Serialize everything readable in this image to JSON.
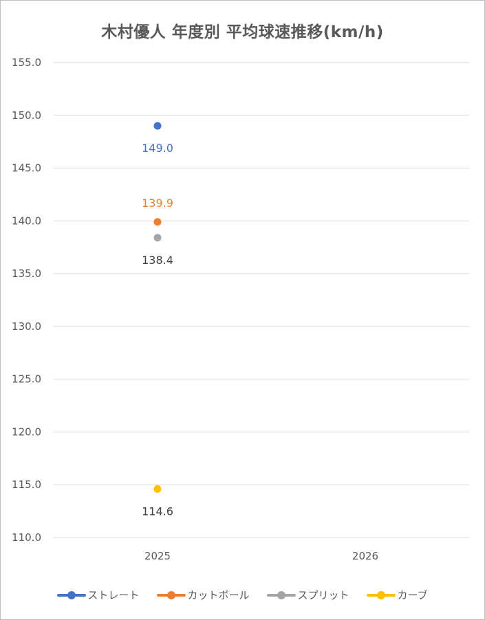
{
  "chart_data": {
    "type": "scatter",
    "title": "木村優人 年度別 平均球速推移(km/h)",
    "categories": [
      "2025",
      "2026"
    ],
    "ylim": [
      110,
      155
    ],
    "yticks": [
      "110.0",
      "115.0",
      "120.0",
      "125.0",
      "130.0",
      "135.0",
      "140.0",
      "145.0",
      "150.0",
      "155.0"
    ],
    "grid": true,
    "legend_position": "bottom",
    "series": [
      {
        "name": "ストレート",
        "color": "#4472C4",
        "values": [
          149.0,
          null
        ],
        "labels": [
          "149.0",
          ""
        ],
        "label_position": "below"
      },
      {
        "name": "カットボール",
        "color": "#ED7D31",
        "values": [
          139.9,
          null
        ],
        "labels": [
          "139.9",
          ""
        ],
        "label_position": "above"
      },
      {
        "name": "スプリット",
        "color": "#A5A5A5",
        "label_color": "#404040",
        "values": [
          138.4,
          null
        ],
        "labels": [
          "138.4",
          ""
        ],
        "label_position": "below"
      },
      {
        "name": "カーブ",
        "color": "#FFC000",
        "label_color": "#404040",
        "values": [
          114.6,
          null
        ],
        "labels": [
          "114.6",
          ""
        ],
        "label_position": "below"
      }
    ]
  }
}
